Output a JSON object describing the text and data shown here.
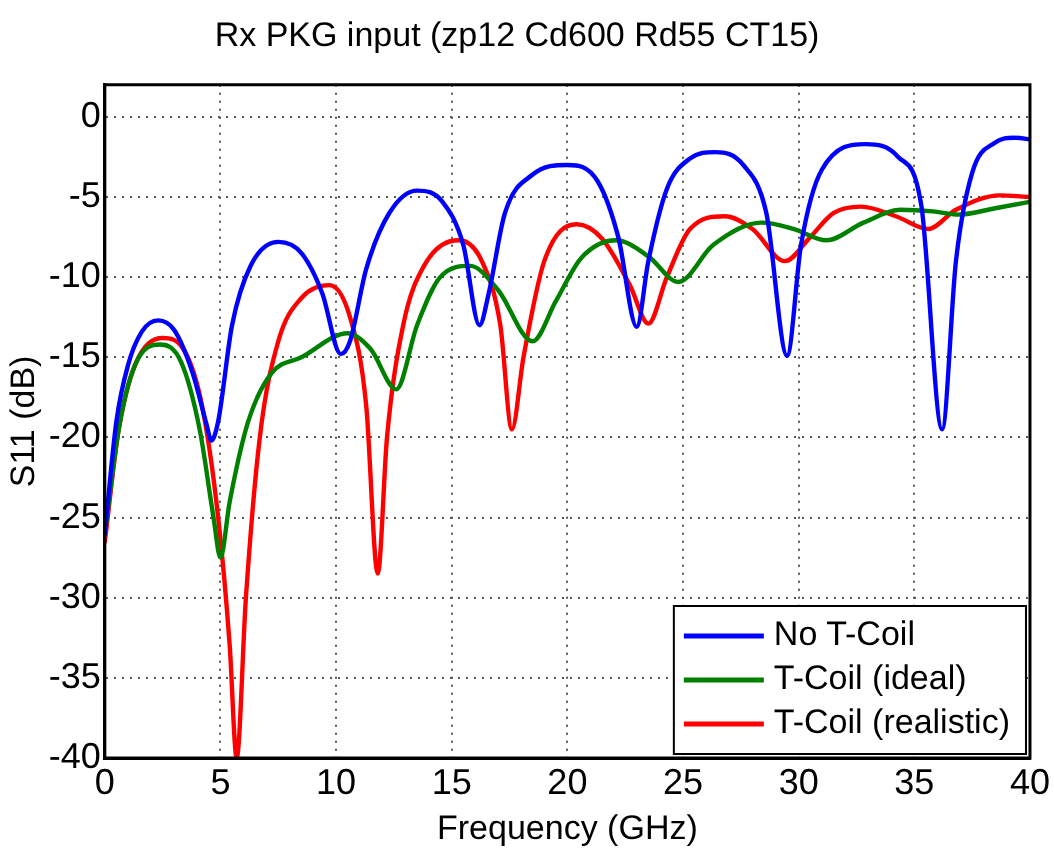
{
  "chart_data": {
    "type": "line",
    "title": "Rx PKG input (zp12 Cd600 Rd55 CT15)",
    "xlabel": "Frequency (GHz)",
    "ylabel": "S11 (dB)",
    "xlim": [
      0,
      40
    ],
    "xticks": [
      0,
      5,
      10,
      15,
      20,
      25,
      30,
      35,
      40
    ],
    "ylim": [
      -40,
      2
    ],
    "yticks": [
      -40,
      -35,
      -30,
      -25,
      -20,
      -15,
      -10,
      -5,
      0
    ],
    "grid": true,
    "legend": "bottom right",
    "marker": "none",
    "line_style": "solid",
    "series": [
      {
        "name": "No T-Coil",
        "color": "#0000ff",
        "x": [
          0,
          0.5,
          1,
          1.6,
          2.3,
          3,
          3.8,
          4.4,
          4.6,
          4.9,
          5.5,
          6.3,
          7.5,
          8.5,
          9.4,
          10.2,
          10.6,
          11.3,
          12.3,
          13.5,
          14.6,
          15.5,
          16.2,
          16.6,
          17.3,
          18.5,
          20,
          21.3,
          22.2,
          23,
          23.5,
          24.3,
          25.3,
          26.4,
          27.6,
          28.6,
          29.5,
          30.1,
          31,
          32.9,
          34.3,
          35.3,
          36.2,
          36.8,
          37.5,
          38.5,
          39.3,
          40
        ],
        "values": [
          -26,
          -19,
          -15.5,
          -13.4,
          -12.7,
          -13.3,
          -16,
          -19.2,
          -20.2,
          -19,
          -13,
          -9.3,
          -7.8,
          -8.5,
          -11,
          -14.8,
          -14,
          -9.5,
          -6,
          -4.6,
          -5.3,
          -8,
          -13,
          -11,
          -6,
          -3.6,
          -3,
          -4,
          -7.5,
          -13.1,
          -9,
          -4.5,
          -2.6,
          -2.2,
          -3,
          -6,
          -14.9,
          -8,
          -3.3,
          -1.7,
          -2.5,
          -5.5,
          -19.5,
          -9,
          -3.5,
          -1.6,
          -1.3,
          -1.4
        ]
      },
      {
        "name": "T-Coil (ideal)",
        "color": "#008000",
        "x": [
          0,
          0.6,
          1.3,
          2.4,
          3.3,
          4.1,
          4.7,
          5,
          5.4,
          6.2,
          7.2,
          8.5,
          10.5,
          11.5,
          12.6,
          13.5,
          14.5,
          15.8,
          17,
          18.5,
          19.5,
          20.6,
          22.1,
          23.5,
          24.8,
          26.3,
          28.4,
          29.8,
          31.2,
          32.8,
          34.4,
          35.8,
          36.9,
          38.5,
          40
        ],
        "values": [
          -26,
          -19.5,
          -15.5,
          -14.2,
          -15.3,
          -19.5,
          -25,
          -27.5,
          -24,
          -19,
          -16,
          -15,
          -13.5,
          -14.5,
          -17,
          -13,
          -10,
          -9.3,
          -10.8,
          -14,
          -11.5,
          -8.8,
          -7.7,
          -8.7,
          -10.3,
          -8,
          -6.6,
          -7,
          -7.7,
          -6.6,
          -5.8,
          -5.9,
          -6.1,
          -5.7,
          -5.3
        ]
      },
      {
        "name": "T-Coil (realistic)",
        "color": "#ff0000",
        "x": [
          0,
          0.6,
          1.3,
          2.5,
          3.4,
          4.2,
          4.9,
          5.4,
          5.7,
          6.1,
          6.7,
          7.5,
          8.5,
          9.7,
          10.6,
          11.3,
          11.8,
          12.2,
          12.9,
          13.8,
          15.3,
          16.3,
          17.1,
          17.6,
          18.1,
          19,
          20.4,
          21.5,
          22.7,
          23.5,
          24.3,
          25.3,
          26.8,
          28,
          29.4,
          30.5,
          31.5,
          32.7,
          34.2,
          35.6,
          36.8,
          38.7,
          40
        ],
        "values": [
          -26.5,
          -19.5,
          -15.5,
          -13.8,
          -14.5,
          -18,
          -25,
          -33,
          -40,
          -30,
          -20,
          -14,
          -11.3,
          -10.5,
          -12.5,
          -18,
          -28.5,
          -20,
          -13,
          -9.3,
          -7.7,
          -9,
          -13,
          -19.5,
          -15,
          -9,
          -6.7,
          -7.6,
          -10.5,
          -12.9,
          -10,
          -7,
          -6.2,
          -7,
          -9,
          -7.5,
          -6,
          -5.6,
          -6.2,
          -7,
          -5.8,
          -4.9,
          -5
        ]
      }
    ]
  }
}
